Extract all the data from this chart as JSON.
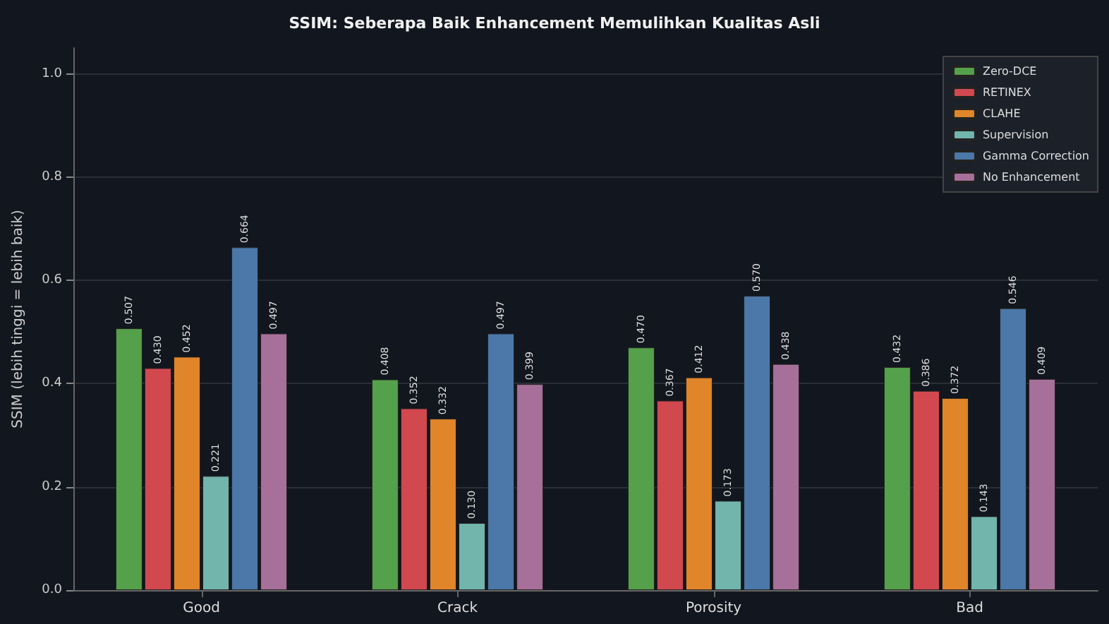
{
  "chart_data": {
    "type": "bar",
    "title": "SSIM: Seberapa Baik Enhancement Memulihkan Kualitas Asli",
    "ylabel": "SSIM (lebih tinggi = lebih baik)",
    "categories": [
      "Good",
      "Crack",
      "Porosity",
      "Bad"
    ],
    "series": [
      {
        "name": "Zero-DCE",
        "color": "#55a04a",
        "values": [
          0.507,
          0.408,
          0.47,
          0.432
        ],
        "value_labels": [
          "0.507",
          "0.408",
          "0.470",
          "0.432"
        ]
      },
      {
        "name": "RETINEX",
        "color": "#d1494f",
        "values": [
          0.43,
          0.352,
          0.367,
          0.386
        ],
        "value_labels": [
          "0.430",
          "0.352",
          "0.367",
          "0.386"
        ]
      },
      {
        "name": "CLAHE",
        "color": "#e0852a",
        "values": [
          0.452,
          0.332,
          0.412,
          0.372
        ],
        "value_labels": [
          "0.452",
          "0.332",
          "0.412",
          "0.372"
        ]
      },
      {
        "name": "Supervision",
        "color": "#72b5ad",
        "values": [
          0.221,
          0.13,
          0.173,
          0.143
        ],
        "value_labels": [
          "0.221",
          "0.130",
          "0.173",
          "0.143"
        ]
      },
      {
        "name": "Gamma Correction",
        "color": "#4b78a8",
        "values": [
          0.664,
          0.497,
          0.57,
          0.546
        ],
        "value_labels": [
          "0.664",
          "0.497",
          "0.570",
          "0.546"
        ]
      },
      {
        "name": "No Enhancement",
        "color": "#a7709a",
        "values": [
          0.497,
          0.399,
          0.438,
          0.409
        ],
        "value_labels": [
          "0.497",
          "0.399",
          "0.438",
          "0.409"
        ]
      }
    ],
    "ylim": [
      0,
      1.05
    ],
    "yticks": [
      {
        "value": 0,
        "label": "0.0"
      },
      {
        "value": 0.2,
        "label": "0.2"
      },
      {
        "value": 0.4,
        "label": "0.4"
      },
      {
        "value": 0.6,
        "label": "0.6"
      },
      {
        "value": 0.8,
        "label": "0.8"
      },
      {
        "value": 1,
        "label": "1.0"
      }
    ],
    "grid": "y",
    "legend": "top right"
  }
}
